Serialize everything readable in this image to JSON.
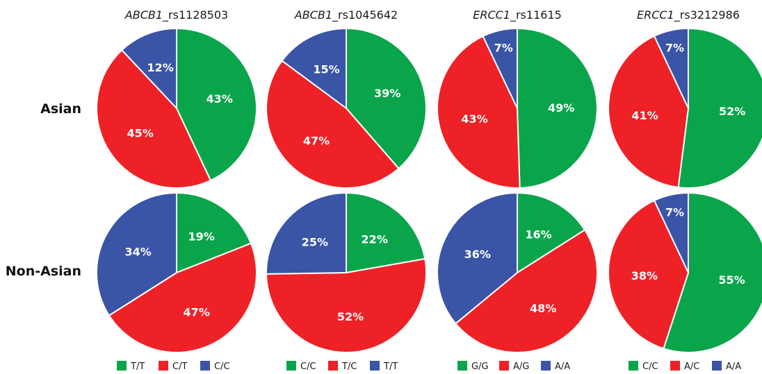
{
  "chart_data": {
    "type": "pie",
    "rows": [
      "Asian",
      "Non-Asian"
    ],
    "colors": {
      "green": "#0aa54b",
      "red": "#ee2127",
      "blue": "#3a54a6"
    },
    "panels": [
      {
        "gene": "ABCB1",
        "snp": "_rs1128503",
        "legend": [
          {
            "label": "T/T",
            "color": "#0aa54b"
          },
          {
            "label": "C/T",
            "color": "#ee2127"
          },
          {
            "label": "C/C",
            "color": "#3a54a6"
          }
        ],
        "pies": [
          {
            "values": [
              43,
              45,
              12
            ],
            "labels": [
              "43%",
              "45%",
              "12%"
            ]
          },
          {
            "values": [
              19,
              47,
              34
            ],
            "labels": [
              "19%",
              "47%",
              "34%"
            ]
          }
        ]
      },
      {
        "gene": "ABCB1",
        "snp": "_rs1045642",
        "legend": [
          {
            "label": "C/C",
            "color": "#0aa54b"
          },
          {
            "label": "T/C",
            "color": "#ee2127"
          },
          {
            "label": "T/T",
            "color": "#3a54a6"
          }
        ],
        "pies": [
          {
            "values": [
              39,
              47,
              15
            ],
            "labels": [
              "39%",
              "47%",
              "15%"
            ]
          },
          {
            "values": [
              22,
              52,
              25
            ],
            "labels": [
              "22%",
              "52%",
              "25%"
            ]
          }
        ]
      },
      {
        "gene": "ERCC1",
        "snp": "_rs11615",
        "legend": [
          {
            "label": "G/G",
            "color": "#0aa54b"
          },
          {
            "label": "A/G",
            "color": "#ee2127"
          },
          {
            "label": "A/A",
            "color": "#3a54a6"
          }
        ],
        "pies": [
          {
            "values": [
              49,
              43,
              7
            ],
            "labels": [
              "49%",
              "43%",
              "7%"
            ]
          },
          {
            "values": [
              16,
              48,
              36
            ],
            "labels": [
              "16%",
              "48%",
              "36%"
            ]
          }
        ]
      },
      {
        "gene": "ERCC1",
        "snp": "_rs3212986",
        "legend": [
          {
            "label": "C/C",
            "color": "#0aa54b"
          },
          {
            "label": "A/C",
            "color": "#ee2127"
          },
          {
            "label": "A/A",
            "color": "#3a54a6"
          }
        ],
        "pies": [
          {
            "values": [
              52,
              41,
              7
            ],
            "labels": [
              "52%",
              "41%",
              "7%"
            ]
          },
          {
            "values": [
              55,
              38,
              7
            ],
            "labels": [
              "55%",
              "38%",
              "7%"
            ]
          }
        ]
      }
    ]
  }
}
